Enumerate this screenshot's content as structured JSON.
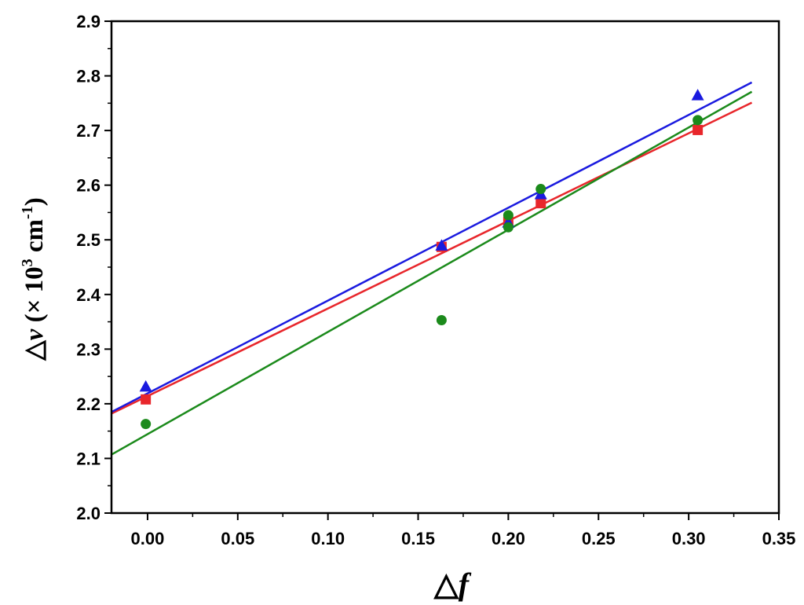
{
  "chart_data": {
    "type": "scatter",
    "title": "",
    "xlabel": {
      "prefix": "△",
      "var": "f"
    },
    "ylabel": {
      "prefix": "△",
      "var": "v",
      "rest": " (× 10",
      "sup": "3",
      "rest2": " cm",
      "sup2": "-1",
      "close": ")"
    },
    "xlim": [
      -0.02,
      0.35
    ],
    "ylim": [
      2.0,
      2.9
    ],
    "xticks": [
      0.0,
      0.05,
      0.1,
      0.15,
      0.2,
      0.25,
      0.3,
      0.35
    ],
    "xtick_labels": [
      "0.00",
      "0.05",
      "0.10",
      "0.15",
      "0.20",
      "0.25",
      "0.30",
      "0.35"
    ],
    "yticks": [
      2.0,
      2.1,
      2.2,
      2.3,
      2.4,
      2.5,
      2.6,
      2.7,
      2.8,
      2.9
    ],
    "ytick_labels": [
      "2.0",
      "2.1",
      "2.2",
      "2.3",
      "2.4",
      "2.5",
      "2.6",
      "2.7",
      "2.8",
      "2.9"
    ],
    "grid": false,
    "series": [
      {
        "marker": "square",
        "color": "#e8262b",
        "points": [
          [
            -0.001,
            2.208
          ],
          [
            0.163,
            2.487
          ],
          [
            0.2,
            2.533
          ],
          [
            0.218,
            2.567
          ],
          [
            0.305,
            2.701
          ]
        ],
        "fit": {
          "x": [
            -0.02,
            0.335
          ],
          "y": [
            2.182,
            2.751
          ]
        }
      },
      {
        "marker": "triangle",
        "color": "#1a1adf",
        "points": [
          [
            -0.001,
            2.231
          ],
          [
            0.163,
            2.489
          ],
          [
            0.2,
            2.531
          ],
          [
            0.218,
            2.583
          ],
          [
            0.305,
            2.764
          ]
        ],
        "fit": {
          "x": [
            -0.02,
            0.335
          ],
          "y": [
            2.185,
            2.788
          ]
        }
      },
      {
        "marker": "circle",
        "color": "#1b8a1b",
        "points": [
          [
            -0.001,
            2.163
          ],
          [
            0.163,
            2.353
          ],
          [
            0.2,
            2.545
          ],
          [
            0.2,
            2.523
          ],
          [
            0.218,
            2.593
          ],
          [
            0.305,
            2.719
          ]
        ],
        "fit": {
          "x": [
            -0.02,
            0.335
          ],
          "y": [
            2.107,
            2.771
          ]
        }
      }
    ]
  }
}
